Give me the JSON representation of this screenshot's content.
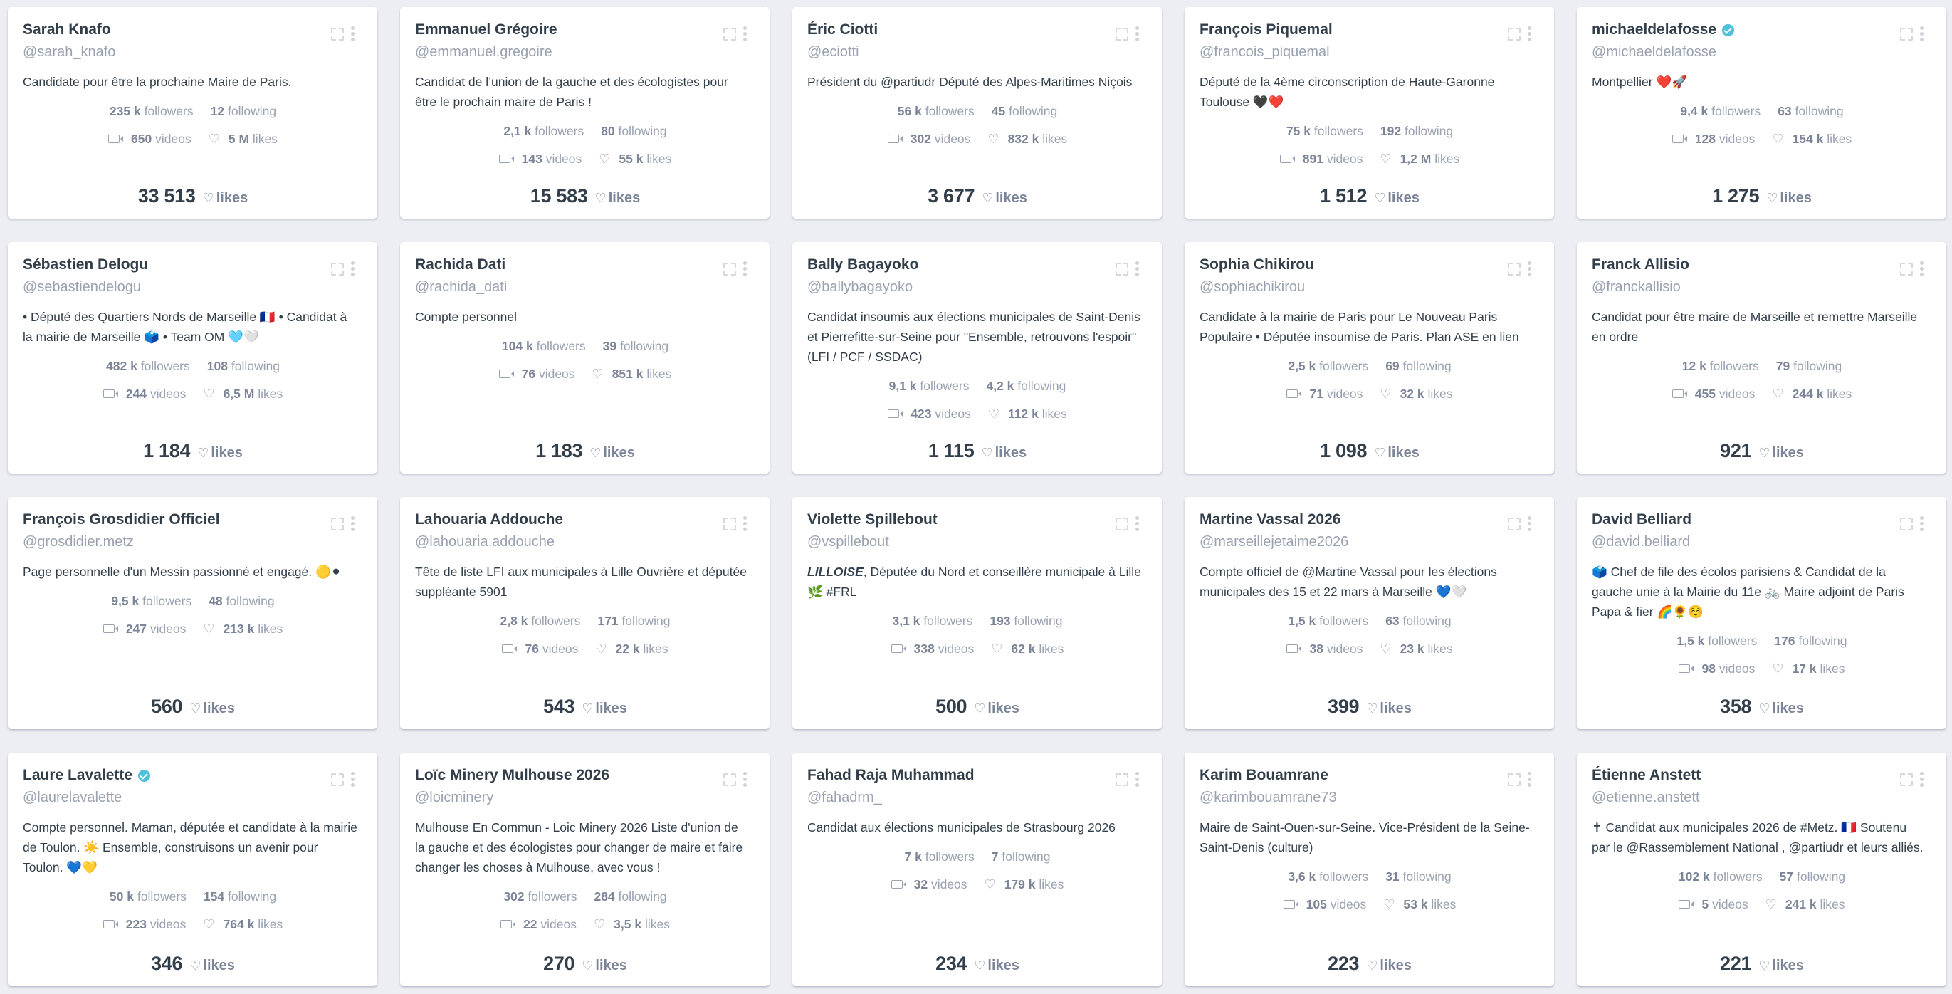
{
  "labels": {
    "followers": "followers",
    "following": "following",
    "videos": "videos",
    "likes": "likes",
    "heart_glyph": "♡"
  },
  "colors": {
    "background": "#eceef3",
    "card": "#ffffff",
    "name": "#323f4b",
    "muted": "#9aa2b1",
    "verified": "#4fc0d8"
  },
  "cards": [
    {
      "name": "Sarah Knafo",
      "verified": false,
      "handle": "@sarah_knafo",
      "bio": "Candidate pour être la prochaine Maire de Paris.",
      "followers": "235 k",
      "following": "12",
      "videos": "650",
      "likes": "5 M",
      "total_likes": "33 513"
    },
    {
      "name": "Emmanuel Grégoire",
      "verified": false,
      "handle": "@emmanuel.gregoire",
      "bio": "Candidat de l’union de la gauche et des écologistes pour être le prochain maire de Paris !",
      "followers": "2,1 k",
      "following": "80",
      "videos": "143",
      "likes": "55 k",
      "total_likes": "15 583"
    },
    {
      "name": "Éric Ciotti",
      "verified": false,
      "handle": "@eciotti",
      "bio": "Président du @partiudr Député des Alpes-Maritimes Niçois",
      "followers": "56 k",
      "following": "45",
      "videos": "302",
      "likes": "832 k",
      "total_likes": "3 677"
    },
    {
      "name": "François Piquemal",
      "verified": false,
      "handle": "@francois_piquemal",
      "bio": "Député de la 4ème circonscription de Haute-Garonne Toulouse 🖤❤️",
      "followers": "75 k",
      "following": "192",
      "videos": "891",
      "likes": "1,2 M",
      "total_likes": "1 512"
    },
    {
      "name": "michaeldelafosse",
      "verified": true,
      "handle": "@michaeldelafosse",
      "bio": "Montpellier ❤️🚀",
      "followers": "9,4 k",
      "following": "63",
      "videos": "128",
      "likes": "154 k",
      "total_likes": "1 275"
    },
    {
      "name": "Sébastien Delogu",
      "verified": false,
      "handle": "@sebastiendelogu",
      "bio": "• Député des Quartiers Nords de Marseille 🇫🇷 • Candidat à la mairie de Marseille 🗳️ • Team OM 🩵🤍",
      "followers": "482 k",
      "following": "108",
      "videos": "244",
      "likes": "6,5 M",
      "total_likes": "1 184"
    },
    {
      "name": "Rachida Dati",
      "verified": false,
      "handle": "@rachida_dati",
      "bio": "Compte personnel",
      "followers": "104 k",
      "following": "39",
      "videos": "76",
      "likes": "851 k",
      "total_likes": "1 183"
    },
    {
      "name": "Bally Bagayoko",
      "verified": false,
      "handle": "@ballybagayoko",
      "bio": "Candidat insoumis aux élections municipales de Saint-Denis et Pierrefitte-sur-Seine pour \"Ensemble, retrouvons l'espoir\" (LFI / PCF / SSDAC)",
      "followers": "9,1 k",
      "following": "4,2 k",
      "videos": "423",
      "likes": "112 k",
      "total_likes": "1 115"
    },
    {
      "name": "Sophia Chikirou",
      "verified": false,
      "handle": "@sophiachikirou",
      "bio": "Candidate à la mairie de Paris pour Le Nouveau Paris Populaire • Députée insoumise de Paris. Plan ASE en lien",
      "followers": "2,5 k",
      "following": "69",
      "videos": "71",
      "likes": "32 k",
      "total_likes": "1 098"
    },
    {
      "name": "Franck Allisio",
      "verified": false,
      "handle": "@franckallisio",
      "bio": "Candidat pour être maire de Marseille et remettre Marseille en ordre",
      "followers": "12 k",
      "following": "79",
      "videos": "455",
      "likes": "244 k",
      "total_likes": "921"
    },
    {
      "name": "François Grosdidier Officiel",
      "verified": false,
      "handle": "@grosdidier.metz",
      "bio": "Page personnelle d'un Messin passionné et engagé. 🟡⚫",
      "followers": "9,5 k",
      "following": "48",
      "videos": "247",
      "likes": "213 k",
      "total_likes": "560"
    },
    {
      "name": "Lahouaria Addouche",
      "verified": false,
      "handle": "@lahouaria.addouche",
      "bio": "Tête de liste LFI aux municipales à Lille Ouvrière et députée suppléante 5901",
      "followers": "2,8 k",
      "following": "171",
      "videos": "76",
      "likes": "22 k",
      "total_likes": "543"
    },
    {
      "name": "Violette Spillebout",
      "verified": false,
      "handle": "@vspillebout",
      "bio_em": "LILLOISE",
      "bio": ", Députée du Nord et conseillère municipale à Lille 🌿 #FRL",
      "followers": "3,1 k",
      "following": "193",
      "videos": "338",
      "likes": "62 k",
      "total_likes": "500"
    },
    {
      "name": "Martine Vassal 2026",
      "verified": false,
      "handle": "@marseillejetaime2026",
      "bio": "Compte officiel de @Martine Vassal pour les élections municipales des 15 et 22 mars à Marseille 💙🤍",
      "followers": "1,5 k",
      "following": "63",
      "videos": "38",
      "likes": "23 k",
      "total_likes": "399"
    },
    {
      "name": "David Belliard",
      "verified": false,
      "handle": "@david.belliard",
      "bio": "🗳️ Chef de file des écolos parisiens & Candidat de la gauche unie à la Mairie du 11e 🚲 Maire adjoint de Paris Papa & fier 🌈🌻☺️",
      "followers": "1,5 k",
      "following": "176",
      "videos": "98",
      "likes": "17 k",
      "total_likes": "358"
    },
    {
      "name": "Laure Lavalette",
      "verified": true,
      "handle": "@laurelavalette",
      "bio": "Compte personnel. Maman, députée et candidate à la mairie de Toulon. ☀️ Ensemble, construisons un avenir pour Toulon. 💙💛",
      "followers": "50 k",
      "following": "154",
      "videos": "223",
      "likes": "764 k",
      "total_likes": "346"
    },
    {
      "name": "Loïc Minery Mulhouse 2026",
      "verified": false,
      "handle": "@loicminery",
      "bio": "Mulhouse En Commun - Loic Minery 2026 Liste d'union de la gauche et des écologistes pour changer de maire et faire changer les choses à Mulhouse, avec vous !",
      "followers": "302",
      "following": "284",
      "videos": "22",
      "likes": "3,5 k",
      "total_likes": "270"
    },
    {
      "name": "Fahad Raja Muhammad",
      "verified": false,
      "handle": "@fahadrm_",
      "bio": "Candidat aux élections municipales de Strasbourg 2026",
      "followers": "7 k",
      "following": "7",
      "videos": "32",
      "likes": "179 k",
      "total_likes": "234"
    },
    {
      "name": "Karim Bouamrane",
      "verified": false,
      "handle": "@karimbouamrane73",
      "bio": "Maire de Saint-Ouen-sur-Seine. Vice-Président de la Seine-Saint-Denis (culture)",
      "followers": "3,6 k",
      "following": "31",
      "videos": "105",
      "likes": "53 k",
      "total_likes": "223"
    },
    {
      "name": "Étienne Anstett",
      "verified": false,
      "handle": "@etienne.anstett",
      "bio": "✝ Candidat aux municipales 2026 de #Metz. 🇫🇷 Soutenu par le @Rassemblement National , @partiudr et leurs alliés.",
      "followers": "102 k",
      "following": "57",
      "videos": "5",
      "likes": "241 k",
      "total_likes": "221"
    }
  ]
}
